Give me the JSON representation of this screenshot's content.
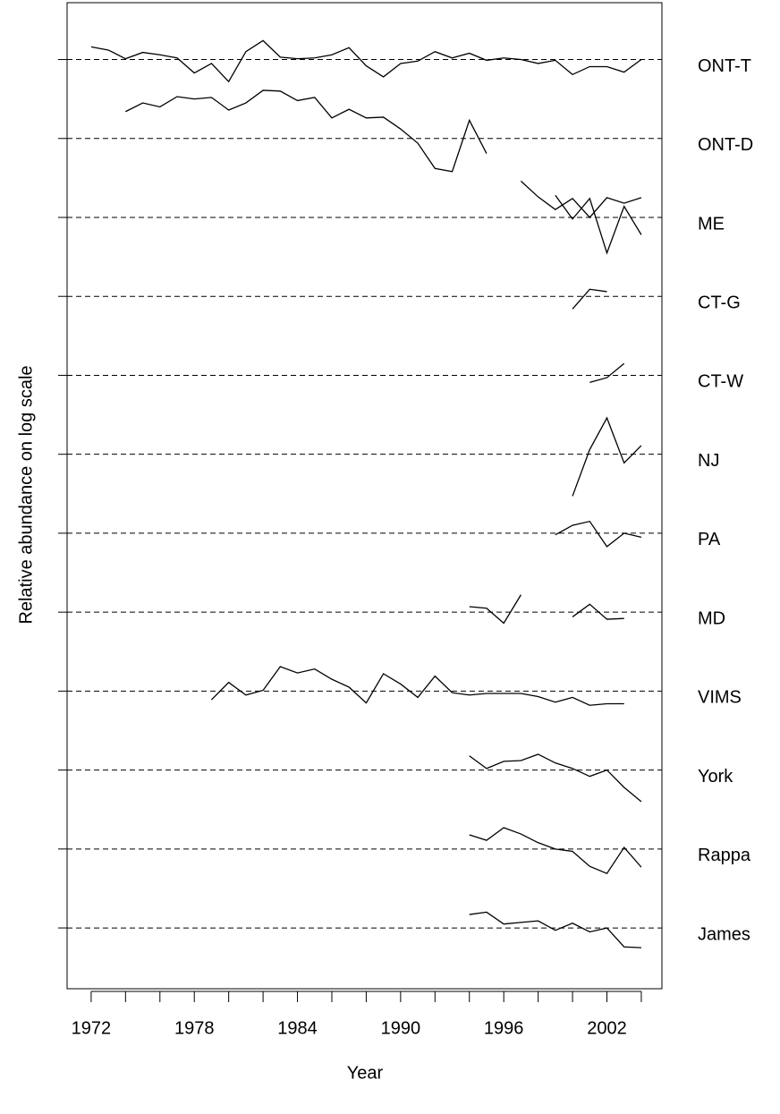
{
  "chart_data": {
    "type": "line",
    "x_label": "Year",
    "y_label": "Relative abundance on log scale",
    "xlim": [
      1970.6,
      2005.2
    ],
    "ylim": [
      0.23,
      12.72
    ],
    "xticks": [
      1972,
      {
        "value": 1974,
        "label": null
      },
      {
        "value": 1976,
        "label": null
      },
      1978,
      {
        "value": 1980,
        "label": null
      },
      {
        "value": 1982,
        "label": null
      },
      1984,
      {
        "value": 1986,
        "label": null
      },
      {
        "value": 1988,
        "label": null
      },
      1990,
      {
        "value": 1992,
        "label": null
      },
      {
        "value": 1994,
        "label": null
      },
      1996,
      {
        "value": 1998,
        "label": null
      },
      {
        "value": 2000,
        "label": null
      },
      2002,
      {
        "value": 2004,
        "label": null
      }
    ],
    "yticks": [
      {
        "value": 12,
        "label": "ONT-T"
      },
      {
        "value": 11,
        "label": "ONT-D"
      },
      {
        "value": 10,
        "label": "ME"
      },
      {
        "value": 9,
        "label": "CT-G"
      },
      {
        "value": 8,
        "label": "CT-W"
      },
      {
        "value": 7,
        "label": "NJ"
      },
      {
        "value": 6,
        "label": "PA"
      },
      {
        "value": 5,
        "label": "MD"
      },
      {
        "value": 4,
        "label": "VIMS"
      },
      {
        "value": 3,
        "label": "York"
      },
      {
        "value": 2,
        "label": "Rappa"
      },
      {
        "value": 1,
        "label": "James"
      }
    ],
    "grid": true,
    "series": [
      {
        "color": "#000000",
        "x": [
          1972,
          1973,
          1974,
          1975,
          1976,
          1977,
          1978,
          1979,
          1980,
          1981,
          1982,
          1983,
          1984,
          1985,
          1986,
          1987,
          1988,
          1989,
          1990,
          1991,
          1992,
          1993,
          1994,
          1995,
          1996,
          1997,
          1998,
          1999,
          2000,
          2001,
          2002,
          2003,
          2004
        ],
        "values": [
          12.16,
          12.12,
          12.01,
          12.09,
          12.06,
          12.02,
          11.83,
          11.95,
          11.72,
          12.1,
          12.24,
          12.03,
          12.01,
          12.02,
          12.06,
          12.15,
          11.92,
          11.78,
          11.95,
          11.98,
          12.1,
          12.02,
          12.08,
          11.99,
          12.02,
          12.0,
          11.95,
          11.99,
          11.81,
          11.91,
          11.91,
          11.84,
          12.0
        ]
      },
      {
        "color": "#000000",
        "x": [
          1974,
          1975,
          1976,
          1977,
          1978,
          1979,
          1980,
          1981,
          1982,
          1983,
          1984,
          1985,
          1986,
          1987,
          1988,
          1989,
          1990,
          1991,
          1992,
          1993,
          1994,
          1995
        ],
        "values": [
          11.34,
          11.45,
          11.4,
          11.53,
          11.5,
          11.52,
          11.36,
          11.45,
          11.61,
          11.6,
          11.48,
          11.52,
          11.26,
          11.37,
          11.26,
          11.27,
          11.12,
          10.94,
          10.62,
          10.58,
          11.23,
          10.81
        ]
      },
      {
        "color": "#000000",
        "x": [
          1997,
          1998,
          1999,
          2000,
          2001,
          2002,
          2003,
          2004
        ],
        "values": [
          10.46,
          10.26,
          10.1,
          10.24,
          10.0,
          10.25,
          10.18,
          10.25
        ]
      },
      {
        "color": "#000000",
        "x": [
          1999,
          2000,
          2001,
          2002,
          2003,
          2004
        ],
        "values": [
          10.28,
          9.98,
          10.24,
          9.55,
          10.14,
          9.78
        ]
      },
      {
        "color": "#000000",
        "x": [
          2000,
          2001,
          2002
        ],
        "values": [
          8.84,
          9.09,
          9.06
        ]
      },
      {
        "color": "#000000",
        "x": [
          2001,
          2002,
          2003
        ],
        "values": [
          7.91,
          7.97,
          8.15
        ]
      },
      {
        "color": "#000000",
        "x": [
          2000,
          2001,
          2002,
          2003,
          2004
        ],
        "values": [
          6.47,
          7.06,
          7.46,
          6.89,
          7.11
        ]
      },
      {
        "color": "#000000",
        "x": [
          1999,
          2000,
          2001,
          2002,
          2003,
          2004
        ],
        "values": [
          5.98,
          6.1,
          6.15,
          5.83,
          6.0,
          5.95
        ]
      },
      {
        "color": "#000000",
        "x": [
          1994,
          1995,
          1996,
          1997,
          1998,
          1999,
          2000,
          2001,
          2002,
          2003
        ],
        "values": [
          5.07,
          5.05,
          4.86,
          5.22,
          null,
          null,
          4.94,
          5.1,
          4.91,
          4.92
        ]
      },
      {
        "color": "#000000",
        "x": [
          1979,
          1980,
          1981,
          1982,
          1983,
          1984,
          1985,
          1986,
          1987,
          1988,
          1989,
          1990,
          1991,
          1992,
          1993,
          1994,
          1995,
          1996,
          1997,
          1998,
          1999,
          2000,
          2001,
          2002,
          2003
        ],
        "values": [
          3.89,
          4.11,
          3.95,
          4.01,
          4.31,
          4.23,
          4.28,
          4.15,
          4.05,
          3.85,
          4.22,
          4.09,
          3.92,
          4.19,
          3.98,
          3.95,
          3.97,
          3.97,
          3.97,
          3.93,
          3.86,
          3.92,
          3.82,
          3.84,
          3.84
        ]
      },
      {
        "color": "#000000",
        "x": [
          1994,
          1995,
          1996,
          1997,
          1998,
          1999,
          2000,
          2001,
          2002,
          2003,
          2004
        ],
        "values": [
          3.18,
          3.02,
          3.11,
          3.12,
          3.2,
          3.09,
          3.02,
          2.92,
          3.0,
          2.78,
          2.6
        ]
      },
      {
        "color": "#000000",
        "x": [
          1994,
          1995,
          1996,
          1997,
          1998,
          1999,
          2000,
          2001,
          2002,
          2003,
          2004
        ],
        "values": [
          2.18,
          2.11,
          2.27,
          2.19,
          2.08,
          2.0,
          1.97,
          1.78,
          1.69,
          2.02,
          1.77
        ]
      },
      {
        "color": "#000000",
        "x": [
          1994,
          1995,
          1996,
          1997,
          1998,
          1999,
          2000,
          2001,
          2002,
          2003,
          2004
        ],
        "values": [
          1.17,
          1.2,
          1.05,
          1.07,
          1.09,
          0.97,
          1.06,
          0.95,
          1.0,
          0.76,
          0.75
        ]
      }
    ]
  }
}
